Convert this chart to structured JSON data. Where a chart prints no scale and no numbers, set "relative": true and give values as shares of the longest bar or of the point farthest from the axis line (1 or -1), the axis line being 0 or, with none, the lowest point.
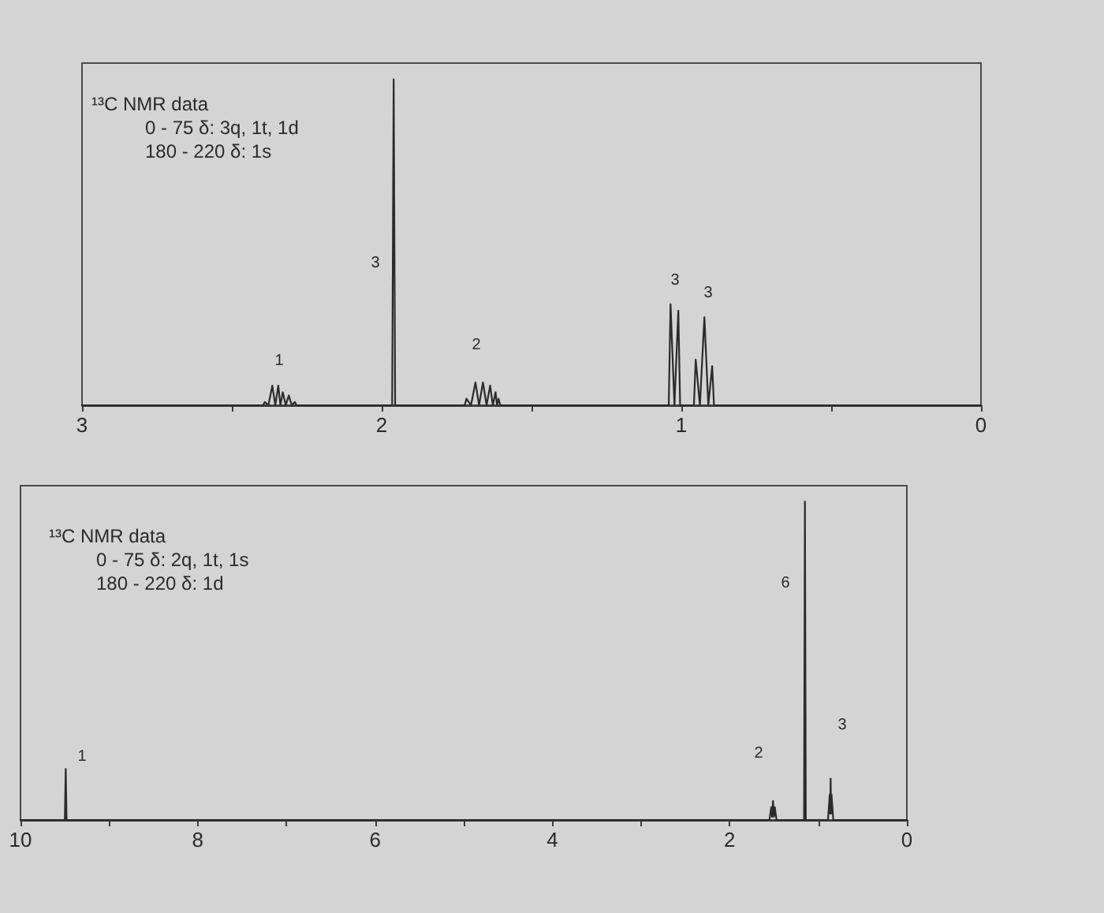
{
  "chart_data": [
    {
      "type": "line",
      "relative": true,
      "color": "#2b2b2b",
      "marker": "none",
      "line_style": "solid",
      "xlim": [
        3,
        0
      ],
      "xticks": [
        3,
        {
          "value": 2.5,
          "label": null
        },
        2,
        {
          "value": 1.5,
          "label": null
        },
        1,
        {
          "value": 0.5,
          "label": null
        },
        0
      ],
      "x": [
        3,
        2.396,
        2.39,
        2.378,
        2.365,
        2.355,
        2.345,
        2.338,
        2.33,
        2.32,
        2.31,
        2.3,
        2.29,
        2.284,
        1.965,
        1.96,
        1.955,
        1.723,
        1.717,
        1.702,
        1.687,
        1.675,
        1.662,
        1.65,
        1.638,
        1.629,
        1.62,
        1.615,
        1.61,
        1.604,
        1.042,
        1.036,
        1.023,
        1.01,
        1.004,
        0.958,
        0.952,
        0.938,
        0.923,
        0.91,
        0.897,
        0.891,
        0
      ],
      "values": [
        0,
        0,
        0.01,
        0,
        0.06,
        0,
        0.06,
        0,
        0.04,
        0,
        0.03,
        0,
        0.01,
        0,
        0,
        1,
        0,
        0,
        0.02,
        0,
        0.07,
        0,
        0.07,
        0,
        0.06,
        0,
        0.04,
        0,
        0.02,
        0,
        0,
        0.31,
        0,
        0.29,
        0,
        0,
        0.14,
        0,
        0.27,
        0,
        0.12,
        0,
        0
      ],
      "annotations": [
        "¹³C NMR data",
        "0 - 75 δ: 3q, 1t, 1d",
        "180 - 220 δ: 1s",
        "1",
        "3",
        "2",
        "3",
        "3"
      ]
    },
    {
      "type": "line",
      "relative": true,
      "color": "#2b2b2b",
      "marker": "none",
      "line_style": "solid",
      "xlim": [
        10,
        0
      ],
      "xticks": [
        10,
        {
          "value": 9,
          "label": null
        },
        8,
        {
          "value": 7,
          "label": null
        },
        6,
        {
          "value": 5,
          "label": null
        },
        4,
        {
          "value": 3,
          "label": null
        },
        2,
        {
          "value": 1,
          "label": null
        },
        0
      ],
      "x": [
        10,
        9.5,
        9.49,
        9.48,
        1.55,
        1.53,
        1.52,
        1.51,
        1.5,
        1.49,
        1.47,
        1.16,
        1.15,
        1.14,
        0.89,
        0.87,
        0.865,
        0.86,
        0.855,
        0.85,
        0.83,
        0
      ],
      "values": [
        0,
        0,
        0.16,
        0,
        0,
        0.04,
        0.01,
        0.06,
        0.01,
        0.04,
        0,
        0,
        1,
        0,
        0,
        0.08,
        0.02,
        0.13,
        0.02,
        0.08,
        0,
        0
      ],
      "annotations": [
        "¹³C NMR data",
        "0 - 75 δ: 2q, 1t, 1s",
        "180 - 220 δ: 1d",
        "1",
        "2",
        "6",
        "3"
      ]
    }
  ]
}
